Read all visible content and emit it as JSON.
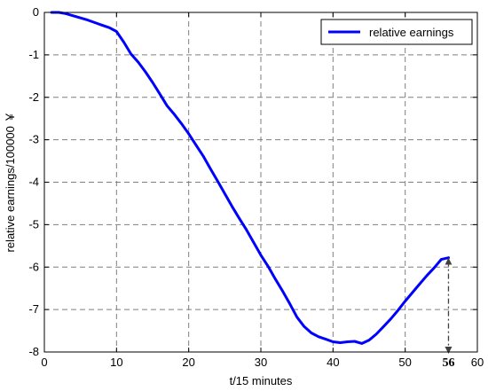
{
  "chart_data": {
    "type": "line",
    "title": "",
    "xlabel": "t/15 minutes",
    "ylabel": "relative earnings/100000 ￥",
    "xlim": [
      0,
      60
    ],
    "ylim": [
      -8,
      0
    ],
    "xticks": [
      0,
      10,
      20,
      30,
      40,
      50,
      60
    ],
    "yticks": [
      0,
      -1,
      -2,
      -3,
      -4,
      -5,
      -6,
      -7,
      -8
    ],
    "grid": true,
    "grid_style": "dashed",
    "legend_position": "top-right",
    "series": [
      {
        "name": "relative earnings",
        "color": "#0000ff",
        "x": [
          1,
          2,
          3,
          4,
          5,
          6,
          7,
          8,
          9,
          10,
          11,
          12,
          13,
          14,
          15,
          16,
          17,
          18,
          19,
          20,
          21,
          22,
          23,
          24,
          25,
          26,
          27,
          28,
          29,
          30,
          31,
          32,
          33,
          34,
          35,
          36,
          37,
          38,
          39,
          40,
          41,
          42,
          43,
          44,
          45,
          46,
          47,
          48,
          49,
          50,
          51,
          52,
          53,
          54,
          55,
          56
        ],
        "y": [
          0,
          0,
          -0.03,
          -0.08,
          -0.13,
          -0.18,
          -0.24,
          -0.3,
          -0.36,
          -0.45,
          -0.7,
          -0.98,
          -1.17,
          -1.4,
          -1.65,
          -1.92,
          -2.2,
          -2.4,
          -2.62,
          -2.86,
          -3.12,
          -3.38,
          -3.68,
          -3.97,
          -4.27,
          -4.57,
          -4.85,
          -5.12,
          -5.42,
          -5.72,
          -5.98,
          -6.28,
          -6.56,
          -6.86,
          -7.18,
          -7.4,
          -7.55,
          -7.64,
          -7.7,
          -7.76,
          -7.78,
          -7.76,
          -7.75,
          -7.8,
          -7.72,
          -7.58,
          -7.4,
          -7.22,
          -7.02,
          -6.8,
          -6.6,
          -6.4,
          -6.2,
          -6.02,
          -5.82,
          -5.78
        ]
      }
    ],
    "annotations": [
      {
        "text": "56",
        "x": 56,
        "arrow_from": -5.8,
        "arrow_to": -8,
        "arrow_color": "#404040",
        "arrow_style": "dash-dot"
      }
    ]
  }
}
